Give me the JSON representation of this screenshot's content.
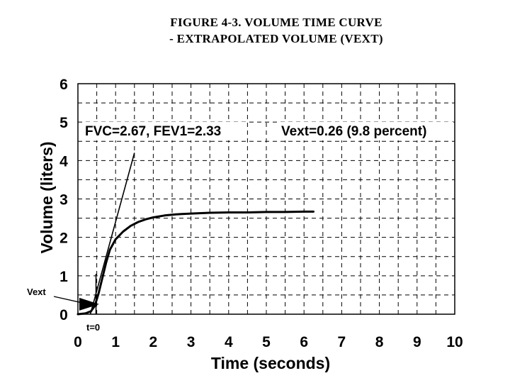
{
  "chart_data": {
    "type": "line",
    "title": "FIGURE 4-3.  VOLUME TIME CURVE",
    "subtitle": "- EXTRAPOLATED VOLUME (VEXT)",
    "xlabel": "Time (seconds)",
    "ylabel": "Volume (liters)",
    "xlim": [
      0,
      10
    ],
    "ylim": [
      0,
      6
    ],
    "xticks": [
      "0",
      "1",
      "2",
      "3",
      "4",
      "5",
      "6",
      "7",
      "8",
      "9",
      "10"
    ],
    "yticks": [
      "0",
      "1",
      "2",
      "3",
      "4",
      "5",
      "6"
    ],
    "grid": true,
    "series": [
      {
        "x": [
          0,
          0.2,
          0.35,
          0.45,
          0.55,
          0.65,
          0.75,
          0.85,
          1.0,
          1.2,
          1.4,
          1.6,
          1.8,
          2.0,
          2.3,
          2.6,
          3.0,
          3.5,
          4.0,
          4.5,
          5.0,
          5.5,
          6.0,
          6.25
        ],
        "y": [
          0,
          0.02,
          0.08,
          0.22,
          0.55,
          0.95,
          1.35,
          1.68,
          1.95,
          2.15,
          2.3,
          2.4,
          2.47,
          2.52,
          2.57,
          2.6,
          2.62,
          2.64,
          2.65,
          2.65,
          2.66,
          2.66,
          2.67,
          2.67
        ]
      }
    ],
    "extrapolation_line": {
      "x": [
        0.33,
        1.5
      ],
      "y": [
        0,
        4.2
      ]
    },
    "t0_x": 0.48,
    "vext_value": 0.26,
    "annotations": {
      "fvc": "FVC=2.67, FEV1=2.33",
      "vext": "Vext=0.26 (9.8 percent)",
      "vext_marker": "Vext",
      "t0": "t=0"
    }
  }
}
